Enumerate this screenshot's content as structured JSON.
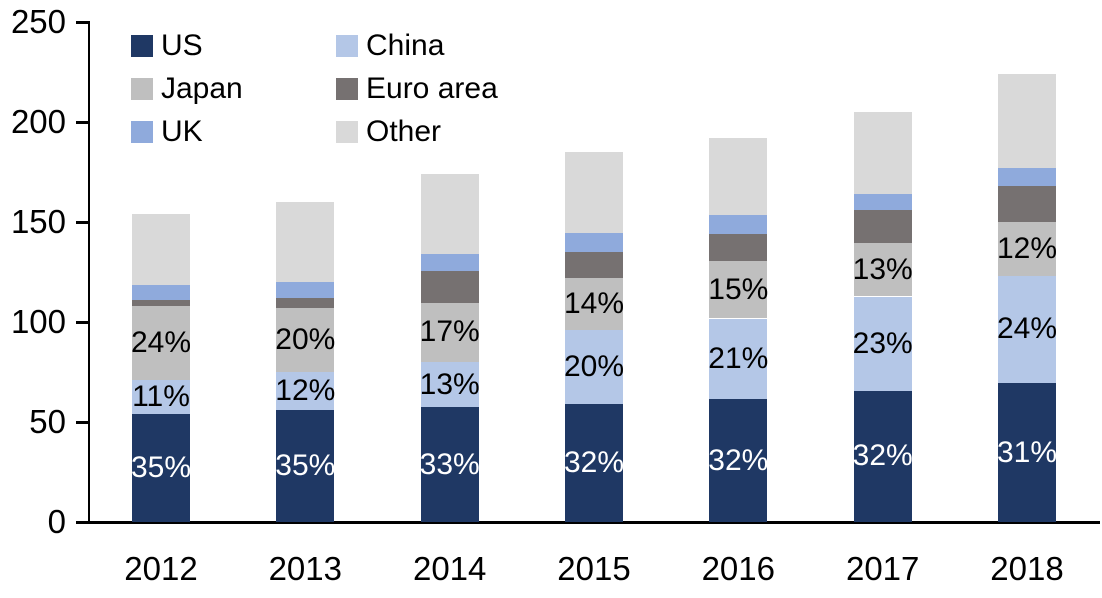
{
  "chart_data": {
    "type": "bar",
    "stacked": true,
    "title": "",
    "xlabel": "",
    "ylabel": "",
    "categories": [
      "2012",
      "2013",
      "2014",
      "2015",
      "2016",
      "2017",
      "2018"
    ],
    "totals": [
      154,
      160,
      174,
      185,
      192,
      205,
      224
    ],
    "ylim": [
      0,
      250
    ],
    "yticks": [
      "0",
      "50",
      "100",
      "150",
      "200",
      "250"
    ],
    "grid": false,
    "legend_position": "top-left-two-columns",
    "series": [
      {
        "name": "US",
        "color": "#1f3864",
        "percentages": [
          35,
          35,
          33,
          32,
          32,
          32,
          31
        ],
        "values": [
          53.9,
          56.0,
          57.4,
          59.2,
          61.4,
          65.6,
          69.4
        ],
        "labels": [
          "35%",
          "35%",
          "33%",
          "32%",
          "32%",
          "32%",
          "31%"
        ],
        "label_color": "#ffffff"
      },
      {
        "name": "China",
        "color": "#b4c7e7",
        "percentages": [
          11,
          12,
          13,
          20,
          21,
          23,
          24
        ],
        "values": [
          16.9,
          19.2,
          22.6,
          37.0,
          40.3,
          47.2,
          53.8
        ],
        "labels": [
          "11%",
          "12%",
          "13%",
          "20%",
          "21%",
          "23%",
          "24%"
        ],
        "label_color": "#000000"
      },
      {
        "name": "Japan",
        "color": "#bfbfbf",
        "percentages": [
          24,
          20,
          17,
          14,
          15,
          13,
          12
        ],
        "values": [
          37.0,
          32.0,
          29.6,
          25.9,
          28.8,
          26.7,
          26.9
        ],
        "labels": [
          "24%",
          "20%",
          "17%",
          "14%",
          "15%",
          "13%",
          "12%"
        ],
        "label_color": "#000000"
      },
      {
        "name": "Euro area",
        "color": "#767171",
        "percentages": [
          2,
          3,
          9,
          7,
          7,
          8,
          8
        ],
        "values": [
          3.1,
          4.8,
          15.7,
          13.0,
          13.4,
          16.4,
          17.9
        ],
        "labels": null,
        "label_color": null
      },
      {
        "name": "UK",
        "color": "#8faadc",
        "percentages": [
          5,
          5,
          5,
          5,
          5,
          4,
          4
        ],
        "values": [
          7.7,
          8.0,
          8.7,
          9.3,
          9.6,
          8.2,
          9.0
        ],
        "labels": null,
        "label_color": null
      },
      {
        "name": "Other",
        "color": "#d9d9d9",
        "percentages": [
          23,
          25,
          23,
          22,
          20,
          20,
          21
        ],
        "values": [
          35.4,
          40.0,
          40.0,
          40.7,
          38.4,
          41.0,
          47.0
        ],
        "labels": null,
        "label_color": null
      }
    ],
    "legend_columns": [
      [
        "US",
        "Japan",
        "UK"
      ],
      [
        "China",
        "Euro area",
        "Other"
      ]
    ]
  }
}
